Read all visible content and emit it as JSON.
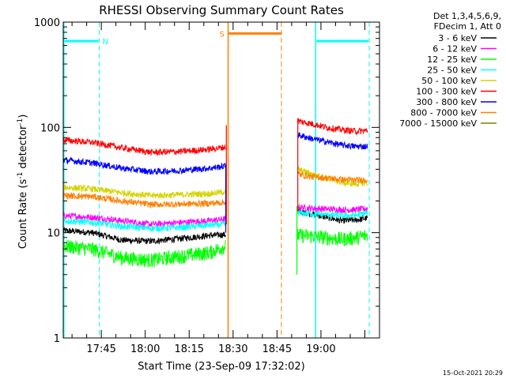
{
  "chart_data": {
    "type": "line",
    "title": "RHESSI Observing Summary Count Rates",
    "xlabel": "Start Time (23-Sep-09 17:32:02)",
    "ylabel_parts": [
      "Count Rate (s",
      "-1",
      " detector",
      "-1",
      ")"
    ],
    "y_scale": "log",
    "ylim": [
      1,
      1000
    ],
    "x_range_minutes_from_start": [
      0,
      108
    ],
    "y_tick_labels": [
      {
        "value": 1,
        "label": "1"
      },
      {
        "value": 10,
        "label": "10"
      },
      {
        "value": 100,
        "label": "100"
      },
      {
        "value": 1000,
        "label": "1000"
      }
    ],
    "x_tick_labels": [
      {
        "minute": 13,
        "label": "17:45"
      },
      {
        "minute": 28,
        "label": "18:00"
      },
      {
        "minute": 43,
        "label": "18:15"
      },
      {
        "minute": 58,
        "label": "18:30"
      },
      {
        "minute": 73,
        "label": "18:45"
      },
      {
        "minute": 88,
        "label": "19:00"
      }
    ],
    "legend_header": [
      "Det 1,3,4,5,6,9,",
      "FDecim 1, Att 0"
    ],
    "legend_placement": "right",
    "series": [
      {
        "name": "3 - 6 keV",
        "color": "#000000",
        "segments": [
          {
            "x": [
              0,
              10,
              20,
              30,
              40,
              50,
              55.5
            ],
            "y": [
              10.5,
              10,
              8.5,
              8.3,
              8.8,
              9.4,
              9.6
            ]
          },
          {
            "x": [
              80,
              85,
              90,
              95,
              100,
              104
            ],
            "y": [
              16,
              15,
              14,
              13,
              13.2,
              13.8
            ]
          }
        ]
      },
      {
        "name": "6 - 12 keV",
        "color": "#ff00ff",
        "segments": [
          {
            "x": [
              0,
              10,
              20,
              30,
              40,
              50,
              55.5
            ],
            "y": [
              14.5,
              14,
              13,
              12,
              12.5,
              13,
              13.5
            ]
          },
          {
            "x": [
              80,
              85,
              90,
              95,
              100,
              104
            ],
            "y": [
              17.5,
              17,
              16.8,
              16.5,
              16.5,
              17
            ]
          }
        ]
      },
      {
        "name": "12 - 25 keV",
        "color": "#00ff00",
        "segments": [
          {
            "x": [
              0,
              10,
              20,
              30,
              40,
              50,
              55.5
            ],
            "y": [
              7.5,
              7,
              5.8,
              5.5,
              6,
              6.5,
              7.5
            ]
          },
          {
            "x": [
              80,
              85,
              90,
              95,
              100,
              104
            ],
            "y": [
              9.5,
              9.3,
              9,
              8.7,
              9,
              9.5
            ]
          }
        ]
      },
      {
        "name": "25 - 50 keV",
        "color": "#00ffff",
        "segments": [
          {
            "x": [
              0,
              10,
              20,
              30,
              40,
              50,
              55.5
            ],
            "y": [
              13,
              12.5,
              11.5,
              11,
              11.2,
              11.8,
              12
            ]
          },
          {
            "x": [
              80,
              85,
              90,
              95,
              100,
              104
            ],
            "y": [
              15.5,
              15,
              14.8,
              14.5,
              14.6,
              15.5
            ]
          }
        ]
      },
      {
        "name": "50 - 100 keV",
        "color": "#d4d400",
        "segments": [
          {
            "x": [
              0,
              10,
              20,
              30,
              40,
              50,
              55.5
            ],
            "y": [
              27,
              26,
              24,
              22.5,
              23,
              23.5,
              24.5
            ]
          },
          {
            "x": [
              80,
              85,
              90,
              95,
              100,
              104
            ],
            "y": [
              40,
              36,
              33,
              30,
              29,
              30
            ]
          }
        ]
      },
      {
        "name": "100 - 300 keV",
        "color": "#ff0000",
        "segments": [
          {
            "x": [
              0,
              10,
              20,
              30,
              40,
              50,
              55.5
            ],
            "y": [
              76,
              72,
              64,
              58,
              59,
              62,
              65
            ]
          },
          {
            "x": [
              80,
              85,
              90,
              95,
              100,
              104
            ],
            "y": [
              115,
              108,
              100,
              95,
              92,
              93
            ]
          }
        ]
      },
      {
        "name": "300 - 800 keV",
        "color": "#0000ff",
        "segments": [
          {
            "x": [
              0,
              10,
              20,
              30,
              40,
              50,
              55.5
            ],
            "y": [
              49,
              46,
              41,
              38,
              39,
              41,
              43
            ]
          },
          {
            "x": [
              80,
              85,
              90,
              95,
              100,
              104
            ],
            "y": [
              85,
              78,
              73,
              68,
              66,
              66
            ]
          }
        ]
      },
      {
        "name": "800 - 7000 keV",
        "color": "#ff8000",
        "segments": [
          {
            "x": [
              0,
              10,
              20,
              30,
              40,
              50,
              55.5
            ],
            "y": [
              22.5,
              22,
              20,
              18.5,
              18.7,
              19,
              19.5
            ]
          },
          {
            "x": [
              80,
              85,
              90,
              95,
              100,
              104
            ],
            "y": [
              36,
              34,
              33,
              32,
              31.5,
              32
            ]
          }
        ]
      },
      {
        "name": "7000 - 15000 keV",
        "color": "#808000",
        "segments": []
      }
    ],
    "annotations": [
      {
        "text": "N",
        "color": "#00ffff"
      },
      {
        "text": "S",
        "color": "#ff8000"
      }
    ],
    "timestamp": "15-Oct-2021 20:29"
  }
}
